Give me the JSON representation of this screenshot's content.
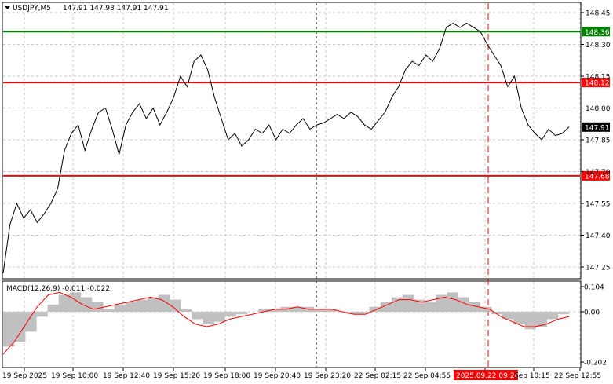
{
  "header": {
    "symbol_timeframe": "USDJPY,M5",
    "ohlc": "147.91 147.93 147.91 147.91"
  },
  "macd": {
    "label": "MACD(12,26,9) -0.011 -0.022",
    "ticks": [
      "0.104",
      "0.00",
      "-0.202"
    ]
  },
  "colors": {
    "price_line": "#000000",
    "support_resistance": "#ff0000",
    "target_line": "#008000",
    "macd_histogram": "#c0c0c0",
    "macd_signal": "#ff0000",
    "grid": "#c8c8c8",
    "current_price_badge": "#000000"
  },
  "chart_data": [
    {
      "type": "line",
      "title": "USDJPY,M5",
      "y_ticks": [
        "148.45",
        "148.30",
        "148.15",
        "148.00",
        "147.85",
        "147.70",
        "147.55",
        "147.40",
        "147.25"
      ],
      "y_tick_values": [
        148.45,
        148.3,
        148.15,
        148.0,
        147.85,
        147.7,
        147.55,
        147.4,
        147.25
      ],
      "ylim": [
        147.22,
        148.5
      ],
      "x_ticks": [
        "19 Sep 2025",
        "19 Sep 10:00",
        "19 Sep 12:40",
        "19 Sep 15:20",
        "19 Sep 18:00",
        "19 Sep 20:40",
        "19 Sep 23:20",
        "22 Sep 02:15",
        "22 Sep 04:55",
        "2025.09.22 09:20",
        "Sep 10:15",
        "22 Sep 12:55"
      ],
      "grid": true,
      "price_series": [
        147.22,
        147.45,
        147.55,
        147.48,
        147.52,
        147.46,
        147.5,
        147.55,
        147.62,
        147.8,
        147.88,
        147.92,
        147.8,
        147.9,
        147.98,
        148.0,
        147.9,
        147.78,
        147.92,
        147.98,
        148.02,
        147.95,
        148.0,
        147.92,
        147.98,
        148.05,
        148.15,
        148.1,
        148.22,
        148.25,
        148.18,
        148.05,
        147.95,
        147.85,
        147.88,
        147.82,
        147.85,
        147.9,
        147.88,
        147.92,
        147.85,
        147.9,
        147.88,
        147.92,
        147.95,
        147.9,
        147.92,
        147.93,
        147.95,
        147.97,
        147.95,
        147.98,
        147.96,
        147.92,
        147.9,
        147.94,
        147.98,
        148.05,
        148.1,
        148.18,
        148.22,
        148.2,
        148.25,
        148.22,
        148.28,
        148.38,
        148.4,
        148.38,
        148.4,
        148.38,
        148.36,
        148.3,
        148.25,
        148.2,
        148.1,
        148.15,
        148.0,
        147.92,
        147.88,
        147.85,
        147.9,
        147.87,
        147.88,
        147.91
      ],
      "levels": [
        {
          "label": "148.36",
          "value": 148.36,
          "kind": "target",
          "color": "#008000"
        },
        {
          "label": "148.12",
          "value": 148.12,
          "kind": "resistance",
          "color": "#ff0000"
        },
        {
          "label": "147.68",
          "value": 147.68,
          "kind": "support",
          "color": "#ff0000"
        }
      ],
      "current_price": {
        "label": "147.91",
        "value": 147.91
      }
    },
    {
      "type": "bar",
      "title": "MACD(12,26,9) -0.011 -0.022",
      "ylim": [
        -0.202,
        0.104
      ],
      "y_ticks": [
        "0.104",
        "0.00",
        "-0.202"
      ],
      "y_tick_values": [
        0.104,
        0.0,
        -0.202
      ],
      "histogram": [
        -0.14,
        -0.12,
        -0.08,
        -0.02,
        0.03,
        0.07,
        0.08,
        0.06,
        0.04,
        0.01,
        0.03,
        0.04,
        0.05,
        0.06,
        0.07,
        0.05,
        0.01,
        -0.03,
        -0.05,
        -0.04,
        -0.02,
        -0.01,
        0.0,
        0.01,
        0.01,
        0.02,
        0.02,
        0.02,
        0.01,
        0.01,
        0.0,
        -0.01,
        -0.01,
        0.02,
        0.04,
        0.06,
        0.07,
        0.05,
        0.04,
        0.07,
        0.08,
        0.06,
        0.04,
        0.02,
        -0.01,
        -0.03,
        -0.05,
        -0.07,
        -0.06,
        -0.03,
        -0.01
      ],
      "signal": [
        -0.17,
        -0.12,
        -0.05,
        0.02,
        0.07,
        0.08,
        0.06,
        0.03,
        0.01,
        0.02,
        0.03,
        0.04,
        0.05,
        0.06,
        0.05,
        0.02,
        -0.02,
        -0.05,
        -0.06,
        -0.05,
        -0.03,
        -0.02,
        -0.01,
        0.0,
        0.01,
        0.01,
        0.02,
        0.01,
        0.01,
        0.01,
        0.0,
        -0.01,
        -0.01,
        0.01,
        0.03,
        0.05,
        0.05,
        0.04,
        0.05,
        0.06,
        0.05,
        0.03,
        0.02,
        0.01,
        -0.02,
        -0.04,
        -0.06,
        -0.06,
        -0.05,
        -0.03,
        -0.02
      ]
    }
  ]
}
